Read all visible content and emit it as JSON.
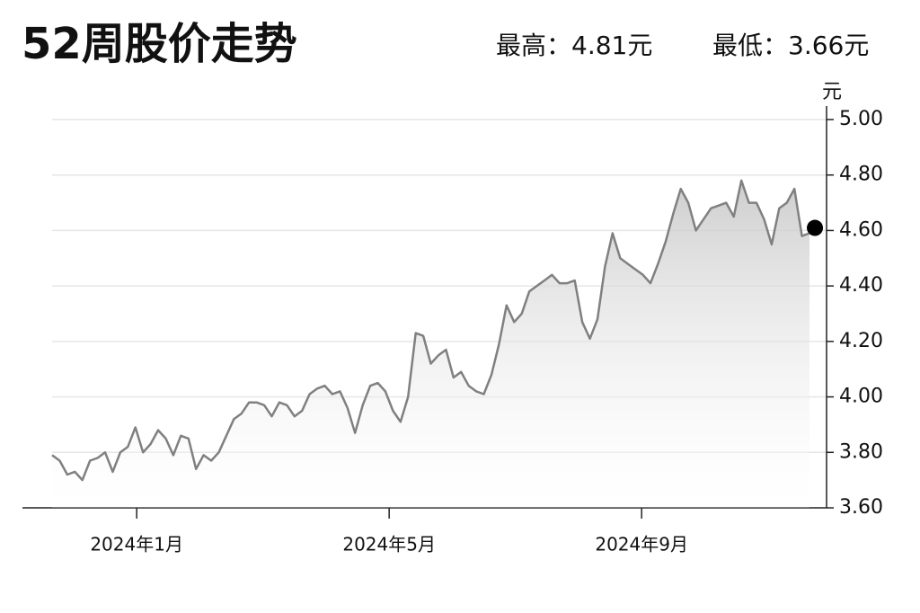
{
  "chart_data": {
    "type": "line",
    "title": "52周股价走势",
    "high_label": "最高：4.81元",
    "low_label": "最低：3.66元",
    "y_label": "元",
    "x": [
      -0.34,
      -0.22,
      -0.1,
      0.02,
      0.14,
      0.26,
      0.38,
      0.5,
      0.62,
      0.74,
      0.86,
      0.98,
      1.1,
      1.22,
      1.34,
      1.46,
      1.58,
      1.7,
      1.82,
      1.94,
      2.06,
      2.18,
      2.3,
      2.42,
      2.54,
      2.66,
      2.78,
      2.9,
      3.02,
      3.14,
      3.26,
      3.38,
      3.5,
      3.62,
      3.74,
      3.86,
      3.98,
      4.1,
      4.22,
      4.34,
      4.46,
      4.58,
      4.7,
      4.82,
      4.94,
      5.06,
      5.18,
      5.3,
      5.42,
      5.54,
      5.66,
      5.78,
      5.9,
      6.02,
      6.14,
      6.26,
      6.38,
      6.5,
      6.62,
      6.74,
      6.86,
      6.98,
      7.1,
      7.22,
      7.34,
      7.46,
      7.58,
      7.7,
      7.82,
      7.94,
      8.06,
      8.18,
      8.3,
      8.42,
      8.54,
      8.66,
      8.78,
      8.9,
      9.02,
      9.14,
      9.26,
      9.38,
      9.5,
      9.62,
      9.74,
      9.86,
      9.98,
      10.1,
      10.22,
      10.34,
      10.46,
      10.58,
      10.7,
      10.82,
      10.94,
      11.06,
      11.18,
      11.3,
      11.42,
      11.54,
      11.66
    ],
    "series": [
      {
        "color": "#808080",
        "values": [
          3.79,
          3.77,
          3.72,
          3.73,
          3.7,
          3.77,
          3.78,
          3.8,
          3.73,
          3.8,
          3.82,
          3.89,
          3.8,
          3.83,
          3.88,
          3.85,
          3.79,
          3.86,
          3.85,
          3.74,
          3.79,
          3.77,
          3.8,
          3.86,
          3.92,
          3.94,
          3.98,
          3.98,
          3.97,
          3.93,
          3.98,
          3.97,
          3.93,
          3.95,
          4.01,
          4.03,
          4.04,
          4.01,
          4.02,
          3.96,
          3.87,
          3.97,
          4.04,
          4.05,
          4.02,
          3.95,
          3.91,
          4.0,
          4.23,
          4.22,
          4.12,
          4.15,
          4.17,
          4.07,
          4.09,
          4.04,
          4.02,
          4.01,
          4.08,
          4.19,
          4.33,
          4.27,
          4.3,
          4.38,
          4.4,
          4.42,
          4.44,
          4.41,
          4.41,
          4.42,
          4.27,
          4.21,
          4.28,
          4.47,
          4.59,
          4.5,
          4.48,
          4.46,
          4.44,
          4.41,
          4.48,
          4.56,
          4.66,
          4.75,
          4.7,
          4.6,
          4.64,
          4.68,
          4.69,
          4.7,
          4.65,
          4.78,
          4.7,
          4.7,
          4.64,
          4.55,
          4.68,
          4.7,
          4.75,
          4.58,
          4.59
        ]
      }
    ],
    "xlim": [
      -0.81,
      11.93
    ],
    "xticks": [
      {
        "value": 1,
        "label": "2024年1月"
      },
      {
        "value": 5,
        "label": "2024年5月"
      },
      {
        "value": 9,
        "label": "2024年9月"
      }
    ],
    "ylim": [
      3.6,
      5.0
    ],
    "yticks": [
      {
        "value": 3.6,
        "label": "3.60"
      },
      {
        "value": 3.8,
        "label": "3.80"
      },
      {
        "value": 4.0,
        "label": "4.00"
      },
      {
        "value": 4.2,
        "label": "4.20"
      },
      {
        "value": 4.4,
        "label": "4.40"
      },
      {
        "value": 4.6,
        "label": "4.60"
      },
      {
        "value": 4.8,
        "label": "4.80"
      },
      {
        "value": 5.0,
        "label": "5.00"
      }
    ],
    "grid": true
  }
}
